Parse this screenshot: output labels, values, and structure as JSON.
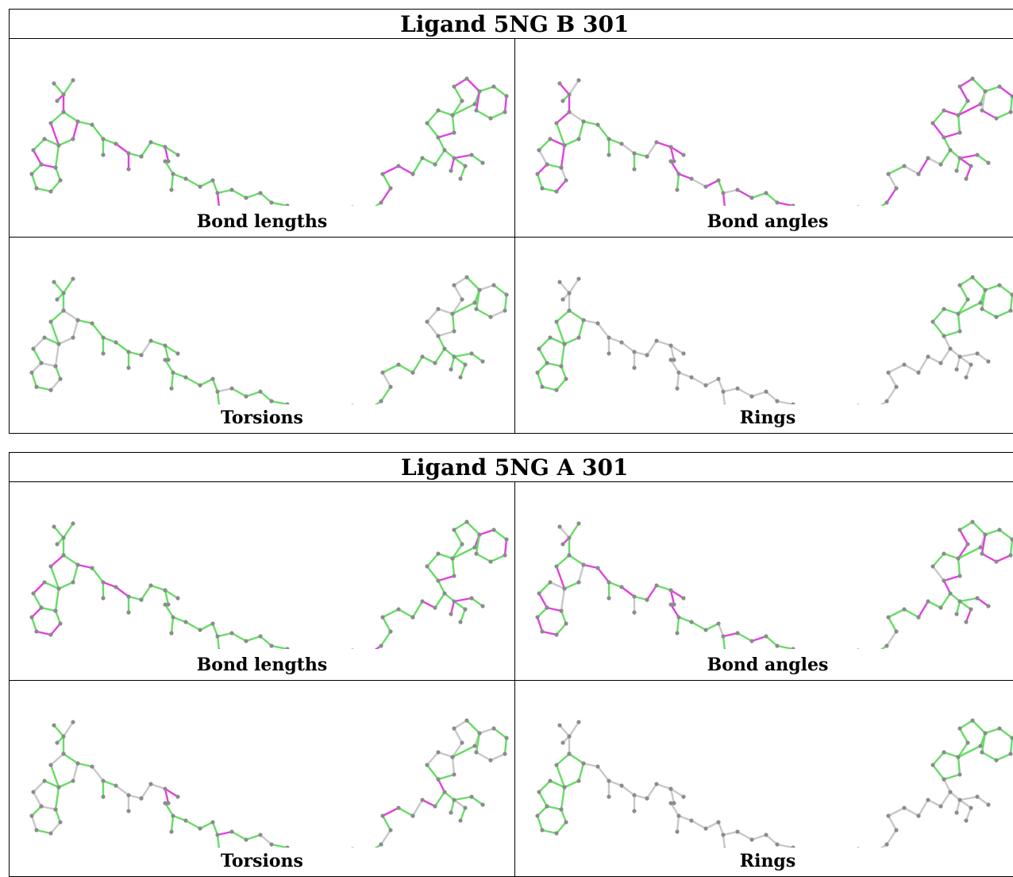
{
  "tables": [
    {
      "title": "Ligand 5NG B 301",
      "panels": [
        {
          "caption": "Bond lengths",
          "highlight": "#e040e0"
        },
        {
          "caption": "Bond angles",
          "highlight": "#e040e0"
        },
        {
          "caption": "Torsions",
          "highlight": "#e040e0"
        },
        {
          "caption": "Rings",
          "highlight": "#e040e0"
        }
      ]
    },
    {
      "title": "Ligand 5NG A 301",
      "panels": [
        {
          "caption": "Bond lengths",
          "highlight": "#e040e0"
        },
        {
          "caption": "Bond angles",
          "highlight": "#e040e0"
        },
        {
          "caption": "Torsions",
          "highlight": "#e040e0"
        },
        {
          "caption": "Rings",
          "highlight": "#e040e0"
        }
      ]
    }
  ],
  "colors": {
    "bond_ok": "#66dd66",
    "bond_outlier": "#e040e0",
    "bond_neutral": "#c8c8c8",
    "atom": "#8c8c8c"
  }
}
